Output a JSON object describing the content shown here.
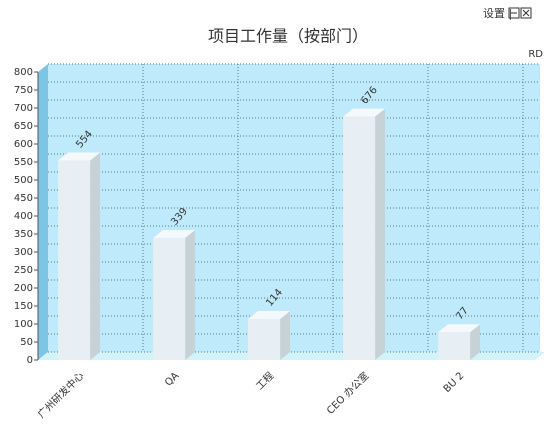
{
  "toolbar": {
    "settings": "设置 |"
  },
  "chart_data": {
    "type": "bar",
    "title": "项目工作量（按部门）",
    "categories": [
      "广州研发中心",
      "QA",
      "工程",
      "CEO 办公室",
      "BU 2"
    ],
    "series": [
      {
        "name": "RD",
        "color": "#e8eff4",
        "values": [
          554,
          339,
          114,
          676,
          77
        ]
      }
    ],
    "ylim": [
      0,
      800
    ],
    "yticks": [
      0,
      50,
      100,
      150,
      200,
      250,
      300,
      350,
      400,
      450,
      500,
      550,
      600,
      650,
      700,
      750,
      800
    ],
    "grid": true
  }
}
